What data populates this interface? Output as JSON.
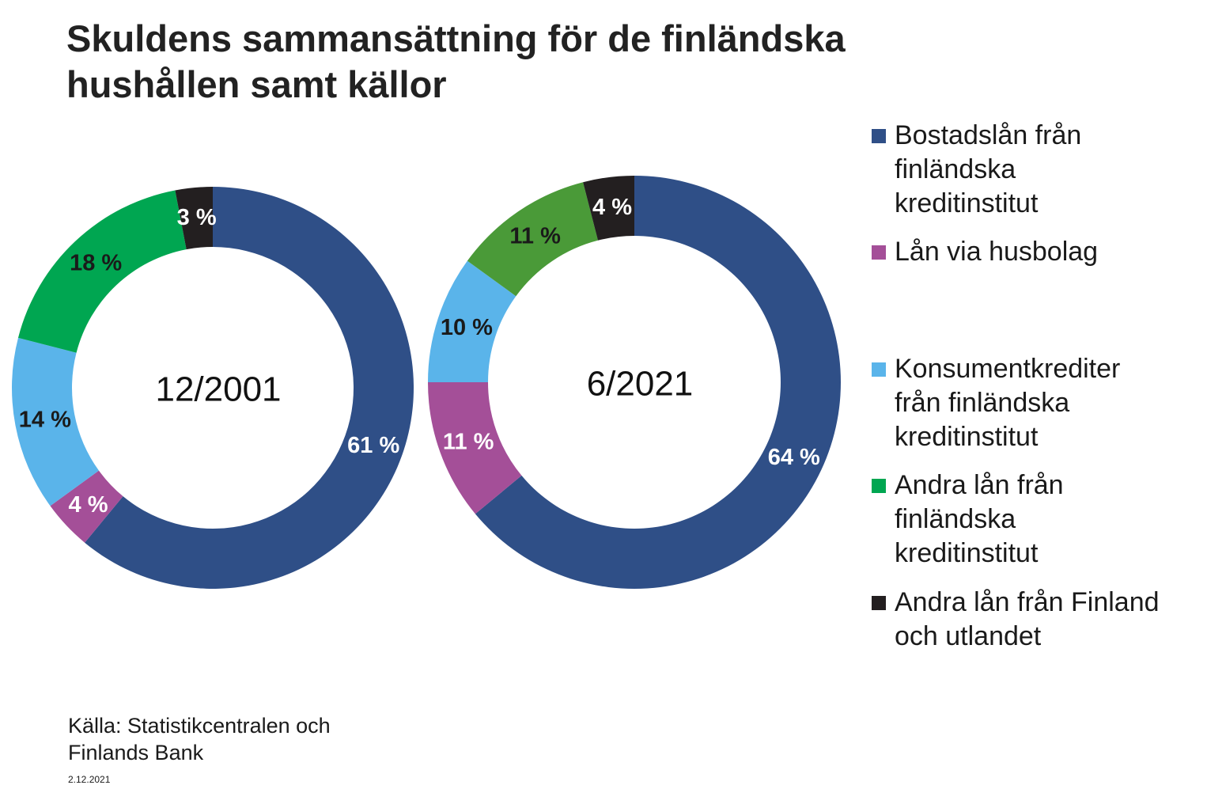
{
  "title": {
    "line1": "Skuldens sammansättning för de finländska",
    "line2": "hushållen samt källor"
  },
  "chart_data": [
    {
      "type": "pie",
      "variant": "donut",
      "center_label": "12/2001",
      "slices": [
        {
          "key": "bostad",
          "label": "Bostadslån från finländska kreditinstitut",
          "value": 61,
          "value_label": "61 %"
        },
        {
          "key": "husbolag",
          "label": "Lån via husbolag",
          "value": 4,
          "value_label": "4 %"
        },
        {
          "key": "konsument",
          "label": "Konsumentkrediter från finländska kreditinstitut",
          "value": 14,
          "value_label": "14 %"
        },
        {
          "key": "andra",
          "label": "Andra lån från finländska kreditinstitut",
          "value": 18,
          "value_label": "18 %"
        },
        {
          "key": "utland",
          "label": "Andra lån från Finland och utlandet",
          "value": 3,
          "value_label": "3 %"
        }
      ]
    },
    {
      "type": "pie",
      "variant": "donut",
      "center_label": "6/2021",
      "slices": [
        {
          "key": "bostad",
          "label": "Bostadslån från finländska kreditinstitut",
          "value": 64,
          "value_label": "64 %"
        },
        {
          "key": "husbolag",
          "label": "Lån via husbolag",
          "value": 11,
          "value_label": "11 %"
        },
        {
          "key": "konsument",
          "label": "Konsumentkrediter från finländska kreditinstitut",
          "value": 10,
          "value_label": "10 %"
        },
        {
          "key": "andra",
          "label": "Andra lån från finländska kreditinstitut",
          "value": 11,
          "value_label": "11 %"
        },
        {
          "key": "utland",
          "label": "Andra lån från Finland och utlandet",
          "value": 4,
          "value_label": "4 %"
        }
      ]
    }
  ],
  "colors": {
    "bostad": "#2f4f87",
    "husbolag": "#a44f98",
    "konsument_2001": "#5ab4ea",
    "konsument_2021": "#5ab4ea",
    "andra_2001": "#00a651",
    "andra_2021": "#4a9a38",
    "utland": "#231f20"
  },
  "legend": [
    {
      "key": "bostad",
      "lines": [
        "Bostadslån från",
        "finländska",
        "kreditinstitut"
      ]
    },
    {
      "key": "husbolag",
      "lines": [
        "Lån via husbolag"
      ]
    },
    {
      "key": "konsument",
      "lines": [
        "Konsumentkrediter",
        "från finländska",
        "kreditinstitut"
      ]
    },
    {
      "key": "andra",
      "lines": [
        "Andra lån från",
        "finländska",
        "kreditinstitut"
      ]
    },
    {
      "key": "utland",
      "lines": [
        "Andra lån från Finland",
        "och utlandet"
      ]
    }
  ],
  "source": {
    "line1": "Källa: Statistikcentralen och",
    "line2": "Finlands Bank"
  },
  "date": "2.12.2021"
}
